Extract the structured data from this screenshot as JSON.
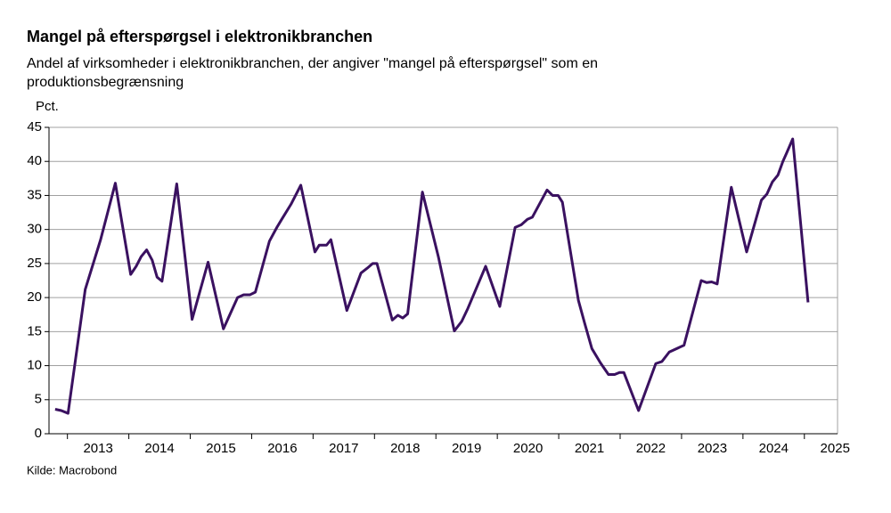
{
  "chart_data": {
    "type": "line",
    "title": "Mangel på efterspørgsel i elektronikbranchen",
    "subtitle": [
      "Andel af virksomheder i elektronikbranchen, der angiver \"mangel på efterspørgsel\" som en",
      "produktionsbegrænsning"
    ],
    "y_label": "Pct.",
    "source": "Kilde: Macrobond",
    "grid": true,
    "xlim": [
      2012.7,
      2025.54
    ],
    "xticks": [
      2013,
      2014,
      2015,
      2016,
      2017,
      2018,
      2019,
      2020,
      2021,
      2022,
      2023,
      2024,
      2025
    ],
    "ylim": [
      0,
      45
    ],
    "yticks": [
      0,
      5,
      10,
      15,
      20,
      25,
      30,
      35,
      40,
      45
    ],
    "x": [
      2012.8,
      2012.9,
      2013.01,
      2013.29,
      2013.42,
      2013.54,
      2013.78,
      2014.03,
      2014.12,
      2014.2,
      2014.29,
      2014.38,
      2014.46,
      2014.54,
      2014.78,
      2015.03,
      2015.29,
      2015.54,
      2015.77,
      2015.87,
      2015.97,
      2016.06,
      2016.29,
      2016.41,
      2016.49,
      2016.64,
      2016.8,
      2017.03,
      2017.1,
      2017.22,
      2017.29,
      2017.55,
      2017.78,
      2017.88,
      2017.97,
      2018.04,
      2018.29,
      2018.38,
      2018.46,
      2018.54,
      2018.78,
      2019.04,
      2019.3,
      2019.42,
      2019.52,
      2019.81,
      2020.04,
      2020.29,
      2020.39,
      2020.49,
      2020.57,
      2020.81,
      2020.9,
      2020.99,
      2021.06,
      2021.32,
      2021.42,
      2021.54,
      2021.68,
      2021.81,
      2021.91,
      2021.99,
      2022.06,
      2022.3,
      2022.58,
      2022.68,
      2022.8,
      2023.04,
      2023.32,
      2023.41,
      2023.49,
      2023.58,
      2023.81,
      2024.06,
      2024.3,
      2024.39,
      2024.48,
      2024.57,
      2024.65,
      2024.71,
      2024.81,
      2025.06
    ],
    "series": [
      {
        "name": "Mangel på efterspørgsel",
        "color": "#3a1160",
        "values": [
          3.6,
          3.4,
          3.0,
          21.2,
          25,
          28.5,
          36.8,
          23.4,
          24.6,
          26,
          27,
          25.5,
          23,
          22.4,
          36.7,
          16.8,
          25.2,
          15.4,
          20,
          20.4,
          20.4,
          20.8,
          28.3,
          30.3,
          31.5,
          33.7,
          36.5,
          26.7,
          27.7,
          27.7,
          28.5,
          18.1,
          23.6,
          24.3,
          25,
          25,
          16.7,
          17.4,
          17,
          17.6,
          35.5,
          26,
          15.1,
          16.5,
          18.4,
          24.6,
          18.7,
          30.3,
          30.7,
          31.5,
          31.8,
          35.8,
          35,
          35,
          34,
          19.6,
          16.3,
          12.5,
          10.4,
          8.7,
          8.7,
          9,
          9,
          3.4,
          10.3,
          10.6,
          12,
          13,
          22.5,
          22.2,
          22.3,
          22,
          36.2,
          26.7,
          34.3,
          35.2,
          37,
          38,
          40,
          41.2,
          43.3,
          19.3
        ]
      }
    ]
  }
}
